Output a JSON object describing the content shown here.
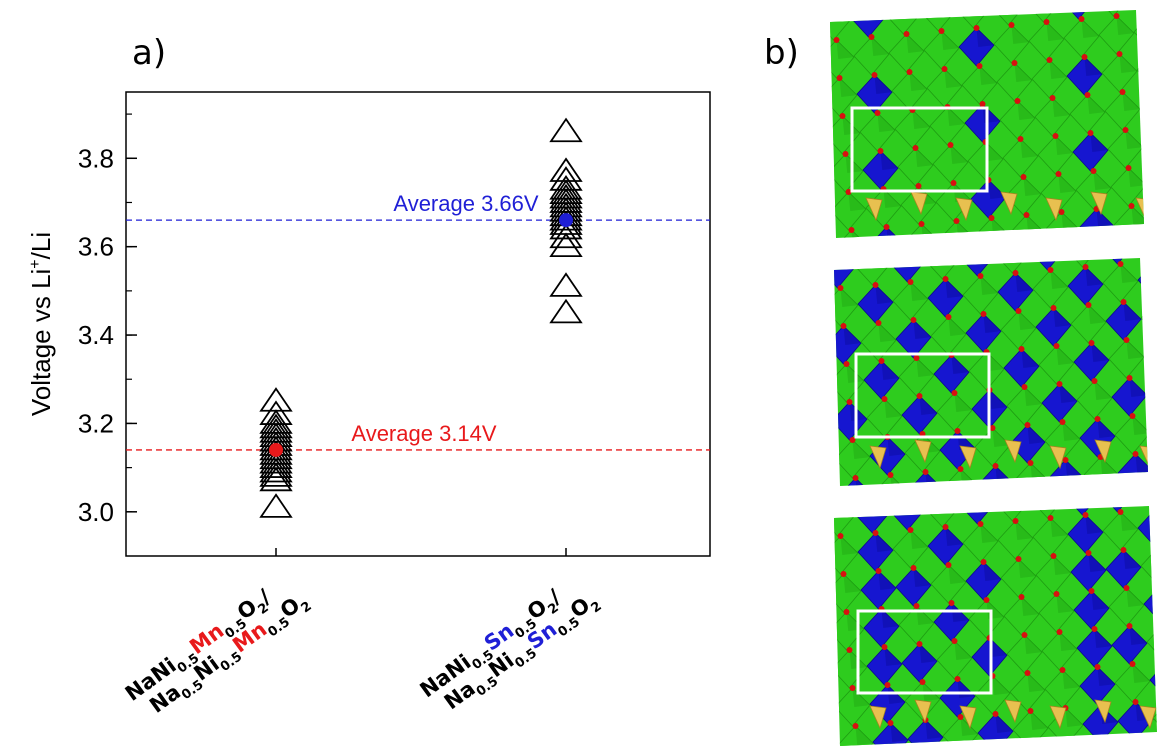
{
  "panels": {
    "a": "a)",
    "b": "b)"
  },
  "chart_data": {
    "type": "scatter",
    "ylabel_main": "Voltage vs Li",
    "ylabel_sup": "+",
    "ylabel_tail": "/Li",
    "ylim": [
      2.9,
      3.95
    ],
    "yticks": [
      "3.0",
      "3.2",
      "3.4",
      "3.6",
      "3.8"
    ],
    "categories": [
      {
        "line1": [
          {
            "t": "NaNi",
            "k": "b"
          },
          {
            "t": "0.5",
            "k": "s"
          },
          {
            "t": "Mn",
            "k": "b",
            "c": "#e8191b"
          },
          {
            "t": "0.5",
            "k": "s"
          },
          {
            "t": "O",
            "k": "b"
          },
          {
            "t": "2",
            "k": "s"
          },
          {
            "t": "/",
            "k": "b"
          }
        ],
        "line2": [
          {
            "t": "Na",
            "k": "b"
          },
          {
            "t": "0.5",
            "k": "s"
          },
          {
            "t": "Ni",
            "k": "b"
          },
          {
            "t": "0.5",
            "k": "s"
          },
          {
            "t": "Mn",
            "k": "b",
            "c": "#e8191b"
          },
          {
            "t": "0.5",
            "k": "s"
          },
          {
            "t": "O",
            "k": "b"
          },
          {
            "t": "2",
            "k": "s"
          }
        ]
      },
      {
        "line1": [
          {
            "t": "NaNi",
            "k": "b"
          },
          {
            "t": "0.5",
            "k": "s"
          },
          {
            "t": "Sn",
            "k": "b",
            "c": "#1f1fd6"
          },
          {
            "t": "0.5",
            "k": "s"
          },
          {
            "t": "O",
            "k": "b"
          },
          {
            "t": "2",
            "k": "s"
          },
          {
            "t": "/",
            "k": "b"
          }
        ],
        "line2": [
          {
            "t": "Na",
            "k": "b"
          },
          {
            "t": "0.5",
            "k": "s"
          },
          {
            "t": "Ni",
            "k": "b"
          },
          {
            "t": "0.5",
            "k": "s"
          },
          {
            "t": "Sn",
            "k": "b",
            "c": "#1f1fd6"
          },
          {
            "t": "0.5",
            "k": "s"
          },
          {
            "t": "O",
            "k": "b"
          },
          {
            "t": "2",
            "k": "s"
          }
        ]
      }
    ],
    "series": [
      {
        "values": [
          3.01,
          3.07,
          3.08,
          3.09,
          3.1,
          3.11,
          3.12,
          3.13,
          3.14,
          3.15,
          3.16,
          3.17,
          3.18,
          3.19,
          3.2,
          3.22,
          3.25
        ],
        "average": 3.14,
        "avg_label": "Average 3.14V",
        "color": "#e8191b"
      },
      {
        "values": [
          3.45,
          3.51,
          3.6,
          3.62,
          3.64,
          3.65,
          3.66,
          3.67,
          3.68,
          3.69,
          3.7,
          3.71,
          3.72,
          3.73,
          3.75,
          3.77,
          3.86
        ],
        "average": 3.66,
        "avg_label": "Average 3.66V",
        "color": "#1f1fd6"
      }
    ]
  },
  "colors": {
    "green": "#2ecc1e",
    "green_dark": "#1e9c12",
    "blue": "#1616d0",
    "blue_dark": "#0a0a8c",
    "yellow": "#e8c050",
    "oxygen": "#d81010"
  }
}
